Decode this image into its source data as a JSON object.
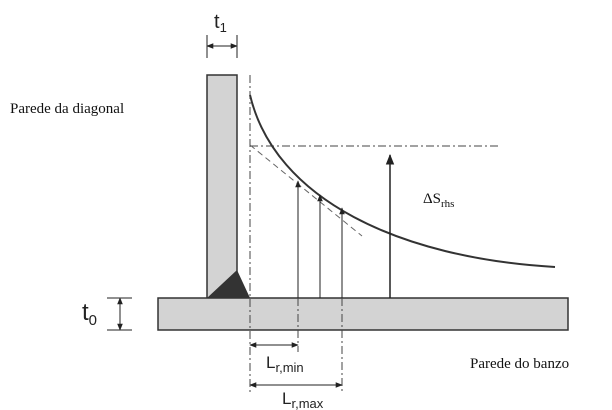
{
  "labels": {
    "t1": {
      "base": "t",
      "sub": "1"
    },
    "diagonal_wall": "Parede da diagonal",
    "t0": {
      "base": "t",
      "sub": "0"
    },
    "stress": {
      "base": "ΔS",
      "sub": "rhs"
    },
    "lr_min": {
      "base": "L",
      "sub": "r,min"
    },
    "lr_max": {
      "base": "L",
      "sub": "r,max"
    },
    "chord_wall": "Parede do banzo"
  }
}
